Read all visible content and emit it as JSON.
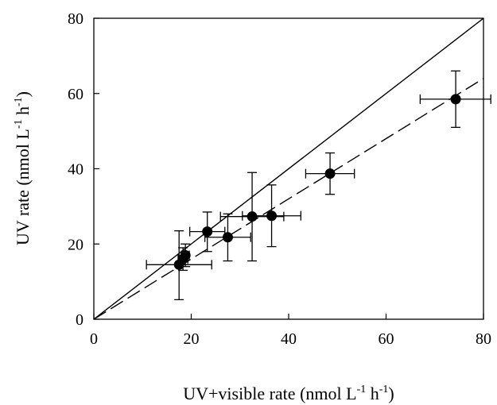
{
  "chart_data": {
    "type": "scatter",
    "xlabel": {
      "main": "UV+visible rate (nmol L",
      "sup1": "-1",
      "mid": " h",
      "sup2": "-1",
      "end": ")"
    },
    "ylabel": {
      "main": "UV rate (nmol L",
      "sup1": "-1",
      "mid": " h",
      "sup2": "-1",
      "end": ")"
    },
    "xlim": [
      0,
      80
    ],
    "ylim": [
      0,
      80
    ],
    "xticks": [
      0,
      20,
      40,
      60,
      80
    ],
    "yticks": [
      0,
      20,
      40,
      60,
      80
    ],
    "grid": false,
    "points": [
      {
        "x": 17.5,
        "y": 14.5,
        "xerr": [
          10.8,
          24.2
        ],
        "yerr": [
          5.2,
          23.5
        ]
      },
      {
        "x": 18.3,
        "y": 16.0,
        "xerr": [
          17.3,
          19.3
        ],
        "yerr": [
          13.0,
          19.0
        ]
      },
      {
        "x": 18.8,
        "y": 17.0,
        "xerr": [
          18.0,
          19.6
        ],
        "yerr": [
          14.0,
          20.0
        ]
      },
      {
        "x": 23.3,
        "y": 23.3,
        "xerr": [
          19.7,
          26.9
        ],
        "yerr": [
          18.0,
          28.5
        ]
      },
      {
        "x": 27.5,
        "y": 21.8,
        "xerr": [
          22.8,
          32.2
        ],
        "yerr": [
          15.5,
          28.0
        ]
      },
      {
        "x": 32.5,
        "y": 27.3,
        "xerr": [
          26.0,
          39.0
        ],
        "yerr": [
          15.5,
          39.0
        ]
      },
      {
        "x": 36.5,
        "y": 27.5,
        "xerr": [
          30.5,
          42.5
        ],
        "yerr": [
          19.3,
          35.7
        ]
      },
      {
        "x": 48.5,
        "y": 38.7,
        "xerr": [
          43.5,
          53.5
        ],
        "yerr": [
          33.2,
          44.2
        ]
      },
      {
        "x": 74.3,
        "y": 58.5,
        "xerr": [
          67.0,
          81.5
        ],
        "yerr": [
          51.0,
          66.0
        ]
      }
    ],
    "lines": [
      {
        "style": "solid",
        "x": [
          0,
          80
        ],
        "y": [
          0,
          80
        ]
      },
      {
        "style": "dashed",
        "x": [
          0,
          80
        ],
        "y": [
          0,
          64
        ]
      }
    ]
  }
}
